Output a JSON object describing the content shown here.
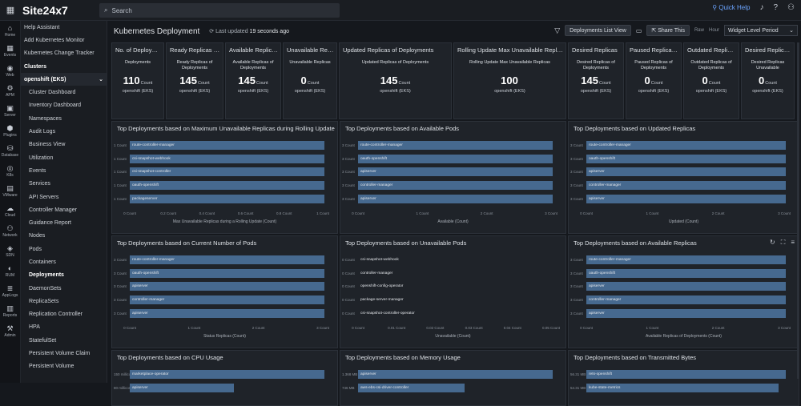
{
  "topbar": {
    "logo": "Site24x7",
    "search_placeholder": "Search",
    "quick_help": "Quick Help"
  },
  "leftnav": [
    {
      "glyph": "⌂",
      "label": "Home"
    },
    {
      "glyph": "▦",
      "label": "Events"
    },
    {
      "glyph": "◉",
      "label": "Web"
    },
    {
      "glyph": "⚙",
      "label": "APM"
    },
    {
      "glyph": "▣",
      "label": "Server"
    },
    {
      "glyph": "⬢",
      "label": "Plugins"
    },
    {
      "glyph": "⛁",
      "label": "Database"
    },
    {
      "glyph": "◎",
      "label": "K8s"
    },
    {
      "glyph": "▤",
      "label": "VMware"
    },
    {
      "glyph": "☁",
      "label": "Cloud"
    },
    {
      "glyph": "⚇",
      "label": "Network"
    },
    {
      "glyph": "◈",
      "label": "SDN"
    },
    {
      "glyph": "◐",
      "label": "RUM"
    },
    {
      "glyph": "≣",
      "label": "AppLogs"
    },
    {
      "glyph": "▥",
      "label": "Reports"
    },
    {
      "glyph": "⚒",
      "label": "Admin"
    }
  ],
  "sidebar": {
    "items": [
      {
        "label": "Help Assistant",
        "type": "normal"
      },
      {
        "label": "Add Kubernetes Monitor",
        "type": "normal"
      },
      {
        "label": "Kubernetes Change Tracker",
        "type": "normal"
      },
      {
        "label": "Clusters",
        "type": "head"
      },
      {
        "label": "openshift (EKS)",
        "type": "cluster"
      },
      {
        "label": "Cluster Dashboard",
        "type": "sub"
      },
      {
        "label": "Inventory Dashboard",
        "type": "sub"
      },
      {
        "label": "Namespaces",
        "type": "sub"
      },
      {
        "label": "Audit Logs",
        "type": "sub"
      },
      {
        "label": "Business View",
        "type": "sub"
      },
      {
        "label": "Utilization",
        "type": "sub"
      },
      {
        "label": "Events",
        "type": "sub"
      },
      {
        "label": "Services",
        "type": "sub"
      },
      {
        "label": "API Servers",
        "type": "sub"
      },
      {
        "label": "Controller Manager",
        "type": "sub"
      },
      {
        "label": "Guidance Report",
        "type": "sub"
      },
      {
        "label": "Nodes",
        "type": "sub"
      },
      {
        "label": "Pods",
        "type": "sub"
      },
      {
        "label": "Containers",
        "type": "sub"
      },
      {
        "label": "Deployments",
        "type": "active"
      },
      {
        "label": "DaemonSets",
        "type": "sub"
      },
      {
        "label": "ReplicaSets",
        "type": "sub"
      },
      {
        "label": "Replication Controller",
        "type": "sub"
      },
      {
        "label": "HPA",
        "type": "sub"
      },
      {
        "label": "StatefulSet",
        "type": "sub"
      },
      {
        "label": "Persistent Volume Claim",
        "type": "sub"
      },
      {
        "label": "Persistent Volume",
        "type": "sub"
      }
    ]
  },
  "header": {
    "title": "Kubernetes Deployment",
    "updated_prefix": "Last updated",
    "updated_value": "19 seconds ago",
    "list_view_button": "Deployments List View",
    "share_button": "Share This",
    "raw": "Raw",
    "hour": "Hour",
    "period_select": "Widget Level Period"
  },
  "kpis": [
    {
      "title": "No. of Deployme...",
      "sub": "Deployments",
      "value": "110",
      "unit": "Count",
      "cluster": "openshift (EKS)",
      "w": 66
    },
    {
      "title": "Ready Replicas of...",
      "sub": "Ready Replicas of Deployments",
      "value": "145",
      "unit": "Count",
      "cluster": "openshift (EKS)",
      "w": 72
    },
    {
      "title": "Available Replica...",
      "sub": "Available Replicas of Deployments",
      "value": "145",
      "unit": "Count",
      "cluster": "openshift (EKS)",
      "w": 70
    },
    {
      "title": "Unavailable Repli...",
      "sub": "Unavailable Replicas",
      "value": "0",
      "unit": "Count",
      "cluster": "openshift (EKS)",
      "w": 68
    },
    {
      "title": "Updated Replicas of Deployments",
      "sub": "Updated Replicas of Deployments",
      "value": "145",
      "unit": "Count",
      "cluster": "openshift (EKS)",
      "w": 141
    },
    {
      "title": "Rolling Update Max Unavailable Replicas",
      "sub": "Rolling Update Max Unavailable Replicas",
      "value": "100",
      "unit": "",
      "cluster": "openshift (EKS)",
      "w": 141
    },
    {
      "title": "Desired Replicas",
      "sub": "Desired Replicas of Deployments",
      "value": "145",
      "unit": "Count",
      "cluster": "openshift (EKS)",
      "w": 70
    },
    {
      "title": "Paused Replicas ...",
      "sub": "Paused Replicas of Deployments",
      "value": "0",
      "unit": "Count",
      "cluster": "openshift (EKS)",
      "w": 70
    },
    {
      "title": "Outdated Replicas...",
      "sub": "Outdated Replicas of Deployments",
      "value": "0",
      "unit": "Count",
      "cluster": "openshift (EKS)",
      "w": 70
    },
    {
      "title": "Desired Replicas ...",
      "sub": "Desired Replicas Unavailable",
      "value": "0",
      "unit": "Count",
      "cluster": "openshift (EKS)",
      "w": 67
    }
  ],
  "chart_data": [
    {
      "type": "bar",
      "orientation": "horizontal",
      "title": "Top Deployments based on Maximum Unavailable Replicas during Rolling Update",
      "xlabel": "Max Unavailable Replicas during a Rolling Update (Count)",
      "categories": [
        "route-controller-manager",
        "csi-snapshot-webhook",
        "csi-snapshot-controller",
        "oauth-openshift",
        "packageserver"
      ],
      "row_labels": [
        "1 Count",
        "1 Count",
        "1 Count",
        "1 Count",
        "1 Count"
      ],
      "values": [
        1,
        1,
        1,
        1,
        1
      ],
      "xlim": [
        0,
        1.0
      ],
      "ticks": [
        "0 Count",
        "0.2 Count",
        "0.4 Count",
        "0.6 Count",
        "0.8 Count",
        "1 Count"
      ]
    },
    {
      "type": "bar",
      "orientation": "horizontal",
      "title": "Top Deployments based on Available Pods",
      "xlabel": "Available (Count)",
      "categories": [
        "route-controller-manager",
        "oauth-openshift",
        "apiserver",
        "controller-manager",
        "apiserver"
      ],
      "row_labels": [
        "3 Count",
        "3 Count",
        "3 Count",
        "3 Count",
        "3 Count"
      ],
      "values": [
        3,
        3,
        3,
        3,
        3
      ],
      "xlim": [
        0,
        3
      ],
      "ticks": [
        "0 Count",
        "1 Count",
        "2 Count",
        "3 Count"
      ]
    },
    {
      "type": "bar",
      "orientation": "horizontal",
      "title": "Top Deployments based on Updated Replicas",
      "xlabel": "Updated (Count)",
      "categories": [
        "route-controller-manager",
        "oauth-openshift",
        "apiserver",
        "controller-manager",
        "apiserver"
      ],
      "row_labels": [
        "3 Count",
        "3 Count",
        "3 Count",
        "3 Count",
        "3 Count"
      ],
      "values": [
        3,
        3,
        3,
        3,
        3
      ],
      "xlim": [
        0,
        3
      ],
      "ticks": [
        "0 Count",
        "1 Count",
        "2 Count",
        "3 Count"
      ]
    },
    {
      "type": "bar",
      "orientation": "horizontal",
      "title": "Top Deployments based on Current Number of Pods",
      "xlabel": "Status Replicas (Count)",
      "categories": [
        "route-controller-manager",
        "oauth-openshift",
        "apiserver",
        "controller-manager",
        "apiserver"
      ],
      "row_labels": [
        "3 Count",
        "3 Count",
        "3 Count",
        "3 Count",
        "3 Count"
      ],
      "values": [
        3,
        3,
        3,
        3,
        3
      ],
      "xlim": [
        0,
        3
      ],
      "ticks": [
        "0 Count",
        "1 Count",
        "2 Count",
        "3 Count"
      ]
    },
    {
      "type": "bar",
      "orientation": "horizontal",
      "title": "Top Deployments based on Unavailable Pods",
      "xlabel": "Unavailable (Count)",
      "categories": [
        "csi-snapshot-webhook",
        "controller-manager",
        "openshift-config-operator",
        "package-server-manager",
        "csi-snapshot-controller-operator"
      ],
      "row_labels": [
        "0 Count",
        "0 Count",
        "0 Count",
        "0 Count",
        "0 Count"
      ],
      "values": [
        0,
        0,
        0,
        0,
        0
      ],
      "xlim": [
        0,
        0.05
      ],
      "ticks": [
        "0 Count",
        "0.01 Count",
        "0.02 Count",
        "0.03 Count",
        "0.04 Count",
        "0.05 Count"
      ]
    },
    {
      "type": "bar",
      "orientation": "horizontal",
      "title": "Top Deployments based on Available Replicas",
      "xlabel": "Available Replicas of Deployments (Count)",
      "categories": [
        "route-controller-manager",
        "oauth-openshift",
        "apiserver",
        "controller-manager",
        "apiserver"
      ],
      "row_labels": [
        "3 Count",
        "3 Count",
        "3 Count",
        "3 Count",
        "3 Count"
      ],
      "values": [
        3,
        3,
        3,
        3,
        3
      ],
      "xlim": [
        0,
        3
      ],
      "ticks": [
        "0 Count",
        "1 Count",
        "2 Count",
        "3 Count"
      ]
    },
    {
      "type": "bar",
      "orientation": "horizontal",
      "title": "Top Deployments based on CPU Usage",
      "xlabel": "",
      "categories": [
        "marketplace-operator",
        "apiserver"
      ],
      "row_labels": [
        "150 millicores",
        "80 millicores"
      ],
      "values": [
        150,
        80
      ],
      "xlim": [
        0,
        150
      ],
      "ticks": []
    },
    {
      "type": "bar",
      "orientation": "horizontal",
      "title": "Top Deployments based on Memory Usage",
      "xlabel": "",
      "categories": [
        "apiserver",
        "aws-ebs-csi-driver-controller"
      ],
      "row_labels": [
        "1.368 MB",
        "746 MB"
      ],
      "values": [
        1368,
        746
      ],
      "xlim": [
        0,
        1368
      ],
      "ticks": []
    },
    {
      "type": "bar",
      "orientation": "horizontal",
      "title": "Top Deployments based on Transmitted Bytes",
      "xlabel": "",
      "categories": [
        "rets-openshift",
        "kube-state-metrics"
      ],
      "row_labels": [
        "56.31 MB",
        "54.31 MB"
      ],
      "values": [
        56.31,
        54.31
      ],
      "xlim": [
        0,
        56.31
      ],
      "ticks": []
    }
  ],
  "panel_tools": [
    "↻",
    "⛶",
    "≡"
  ]
}
